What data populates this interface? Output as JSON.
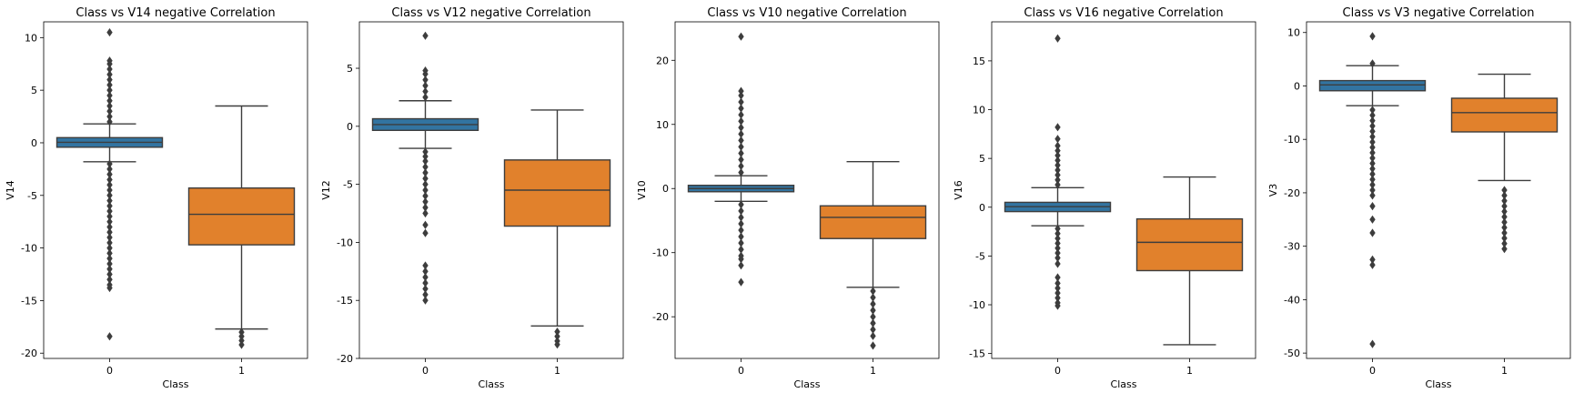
{
  "chart_data": [
    {
      "type": "box",
      "title": "Class vs V14 negative Correlation",
      "xlabel": "Class",
      "ylabel": "V14",
      "categories": [
        "0",
        "1"
      ],
      "ylim": [
        -20.5,
        11.5
      ],
      "yticks": [
        -20,
        -15,
        -10,
        -5,
        0,
        5,
        10
      ],
      "colors": [
        "#3274a1",
        "#e1812c"
      ],
      "boxes": [
        {
          "category": "0",
          "q1": -0.42,
          "median": 0.05,
          "q3": 0.49,
          "whisker_low": -1.8,
          "whisker_high": 1.8,
          "outliers_high": [
            2.0,
            2.5,
            3.0,
            3.5,
            4.0,
            4.5,
            5.0,
            5.5,
            6.0,
            6.5,
            7.0,
            7.5,
            7.8,
            10.5
          ],
          "outliers_low": [
            -2.0,
            -2.5,
            -3.0,
            -3.5,
            -4.0,
            -4.5,
            -5.0,
            -5.5,
            -6.0,
            -6.5,
            -7.0,
            -7.5,
            -8.0,
            -8.5,
            -9.0,
            -9.5,
            -10.0,
            -10.5,
            -11.0,
            -11.5,
            -12.0,
            -12.5,
            -13.0,
            -13.5,
            -13.8,
            -18.4
          ]
        },
        {
          "category": "1",
          "q1": -9.7,
          "median": -6.8,
          "q3": -4.3,
          "whisker_low": -17.7,
          "whisker_high": 3.5,
          "outliers_high": [],
          "outliers_low": [
            -18.0,
            -18.4,
            -18.8,
            -19.2
          ]
        }
      ]
    },
    {
      "type": "box",
      "title": "Class vs V12 negative Correlation",
      "xlabel": "Class",
      "ylabel": "V12",
      "categories": [
        "0",
        "1"
      ],
      "ylim": [
        -20,
        9
      ],
      "yticks": [
        -20,
        -15,
        -10,
        -5,
        0,
        5
      ],
      "colors": [
        "#3274a1",
        "#e1812c"
      ],
      "boxes": [
        {
          "category": "0",
          "q1": -0.35,
          "median": 0.15,
          "q3": 0.65,
          "whisker_low": -1.9,
          "whisker_high": 2.2,
          "outliers_high": [
            2.5,
            3.0,
            3.5,
            4.0,
            4.5,
            4.8,
            7.8
          ],
          "outliers_low": [
            -2.2,
            -2.6,
            -3.0,
            -3.5,
            -4.0,
            -4.5,
            -5.0,
            -5.5,
            -6.0,
            -6.5,
            -7.0,
            -7.5,
            -8.5,
            -9.2,
            -12.0,
            -12.5,
            -13.0,
            -13.5,
            -14.0,
            -14.5,
            -15.0
          ]
        },
        {
          "category": "1",
          "q1": -8.6,
          "median": -5.5,
          "q3": -2.9,
          "whisker_low": -17.2,
          "whisker_high": 1.4,
          "outliers_high": [],
          "outliers_low": [
            -17.7,
            -18.1,
            -18.5,
            -18.8
          ]
        }
      ]
    },
    {
      "type": "box",
      "title": "Class vs V10 negative Correlation",
      "xlabel": "Class",
      "ylabel": "V10",
      "categories": [
        "0",
        "1"
      ],
      "ylim": [
        -26.5,
        26
      ],
      "yticks": [
        -20,
        -10,
        0,
        10,
        20
      ],
      "colors": [
        "#3274a1",
        "#e1812c"
      ],
      "boxes": [
        {
          "category": "0",
          "q1": -0.5,
          "median": 0.0,
          "q3": 0.5,
          "whisker_low": -2.0,
          "whisker_high": 2.0,
          "outliers_high": [
            2.5,
            3.5,
            4.5,
            5.5,
            6.5,
            7.5,
            8.5,
            9.5,
            10.5,
            11.5,
            12.5,
            13.5,
            14.5,
            15.2,
            23.7
          ],
          "outliers_low": [
            -2.5,
            -3.5,
            -4.5,
            -5.5,
            -6.5,
            -7.5,
            -8.5,
            -9.5,
            -10.5,
            -11.0,
            -12.0,
            -14.6
          ]
        },
        {
          "category": "1",
          "q1": -7.8,
          "median": -4.5,
          "q3": -2.7,
          "whisker_low": -15.4,
          "whisker_high": 4.2,
          "outliers_high": [],
          "outliers_low": [
            -16.0,
            -17.0,
            -18.0,
            -19.0,
            -20.0,
            -21.0,
            -22.0,
            -23.0,
            -24.5
          ]
        }
      ]
    },
    {
      "type": "box",
      "title": "Class vs V16 negative Correlation",
      "xlabel": "Class",
      "ylabel": "V16",
      "categories": [
        "0",
        "1"
      ],
      "ylim": [
        -15.5,
        19
      ],
      "yticks": [
        -15,
        -10,
        -5,
        0,
        5,
        10,
        15
      ],
      "colors": [
        "#3274a1",
        "#e1812c"
      ],
      "boxes": [
        {
          "category": "0",
          "q1": -0.45,
          "median": 0.05,
          "q3": 0.5,
          "whisker_low": -1.9,
          "whisker_high": 2.0,
          "outliers_high": [
            2.3,
            2.8,
            3.3,
            3.8,
            4.3,
            4.8,
            5.3,
            5.8,
            6.3,
            7.0,
            8.2,
            17.3
          ],
          "outliers_low": [
            -2.2,
            -2.7,
            -3.2,
            -3.7,
            -4.2,
            -4.7,
            -5.2,
            -5.8,
            -7.2,
            -7.8,
            -8.3,
            -8.8,
            -9.3,
            -9.8,
            -10.1
          ]
        },
        {
          "category": "1",
          "q1": -6.5,
          "median": -3.6,
          "q3": -1.2,
          "whisker_low": -14.1,
          "whisker_high": 3.1,
          "outliers_high": [],
          "outliers_low": []
        }
      ]
    },
    {
      "type": "box",
      "title": "Class vs V3 negative Correlation",
      "xlabel": "Class",
      "ylabel": "V3",
      "categories": [
        "0",
        "1"
      ],
      "ylim": [
        -51,
        12
      ],
      "yticks": [
        -50,
        -40,
        -30,
        -20,
        -10,
        0,
        10
      ],
      "colors": [
        "#3274a1",
        "#e1812c"
      ],
      "boxes": [
        {
          "category": "0",
          "q1": -0.9,
          "median": 0.2,
          "q3": 1.0,
          "whisker_low": -3.7,
          "whisker_high": 3.8,
          "outliers_high": [
            4.2,
            9.3
          ],
          "outliers_low": [
            -4.5,
            -5.5,
            -6.5,
            -7.5,
            -8.5,
            -9.5,
            -10.5,
            -11.5,
            -12.5,
            -13.5,
            -14.5,
            -15.5,
            -16.5,
            -17.5,
            -18.5,
            -19.5,
            -20.5,
            -22.5,
            -25.0,
            -27.5,
            -32.5,
            -33.5,
            -48.3
          ]
        },
        {
          "category": "1",
          "q1": -8.6,
          "median": -5.0,
          "q3": -2.3,
          "whisker_low": -17.7,
          "whisker_high": 2.2,
          "outliers_high": [],
          "outliers_low": [
            -19.5,
            -20.5,
            -21.5,
            -22.5,
            -23.5,
            -24.5,
            -25.5,
            -26.5,
            -27.5,
            -28.5,
            -29.5,
            -30.5
          ]
        }
      ]
    }
  ]
}
